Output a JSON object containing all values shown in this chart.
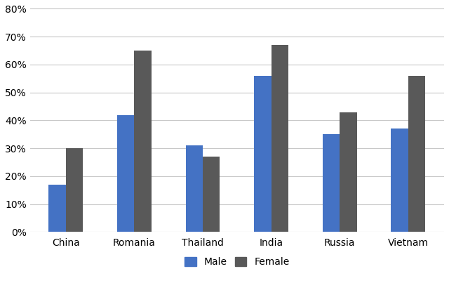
{
  "categories": [
    "China",
    "Romania",
    "Thailand",
    "India",
    "Russia",
    "Vietnam"
  ],
  "male_values": [
    0.17,
    0.42,
    0.31,
    0.56,
    0.35,
    0.37
  ],
  "female_values": [
    0.3,
    0.65,
    0.27,
    0.67,
    0.43,
    0.56
  ],
  "male_color": "#4472C4",
  "female_color": "#595959",
  "ylim": [
    0,
    0.8
  ],
  "yticks": [
    0.0,
    0.1,
    0.2,
    0.3,
    0.4,
    0.5,
    0.6,
    0.7,
    0.8
  ],
  "ytick_labels": [
    "0%",
    "10%",
    "20%",
    "30%",
    "40%",
    "50%",
    "60%",
    "70%",
    "80%"
  ],
  "legend_labels": [
    "Male",
    "Female"
  ],
  "bar_width": 0.25,
  "background_color": "#ffffff",
  "grid_color": "#c8c8c8"
}
